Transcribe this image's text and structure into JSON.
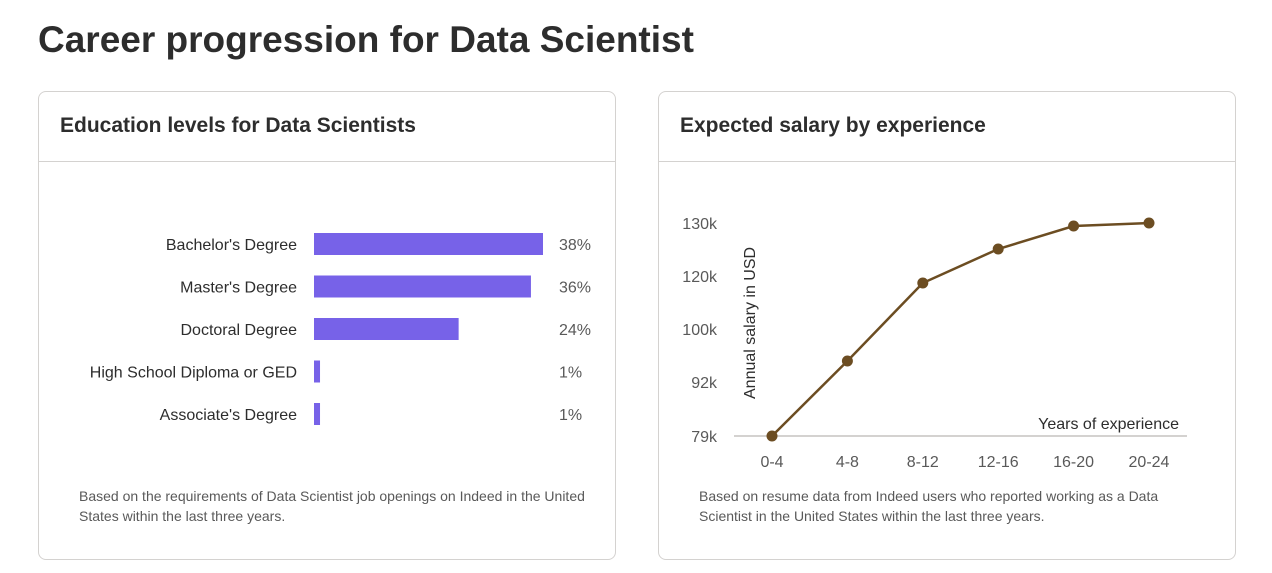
{
  "page": {
    "title": "Career progression for Data Scientist"
  },
  "education": {
    "title": "Education levels for Data Scientists",
    "footnote": "Based on the requirements of Data Scientist job openings on Indeed in the United States within the last three years.",
    "chart_data": {
      "type": "bar",
      "orientation": "horizontal",
      "categories": [
        "Bachelor's Degree",
        "Master's Degree",
        "Doctoral Degree",
        "High School Diploma or GED",
        "Associate's Degree"
      ],
      "values": [
        38,
        36,
        24,
        1,
        1
      ],
      "value_labels": [
        "38%",
        "36%",
        "24%",
        "1%",
        "1%"
      ],
      "bar_color": "#7762e8"
    }
  },
  "salary": {
    "title": "Expected salary by experience",
    "footnote": "Based on resume data from Indeed users who reported working as a Data Scientist in the United States within the last three years.",
    "chart_data": {
      "type": "line",
      "categories": [
        "0-4",
        "4-8",
        "8-12",
        "12-16",
        "16-20",
        "20-24"
      ],
      "y_tick_labels": [
        "79k",
        "92k",
        "100k",
        "120k",
        "130k"
      ],
      "values": [
        79,
        95,
        118,
        125,
        130,
        131
      ],
      "ylim": [
        79,
        131
      ],
      "xlabel": "Years of experience",
      "ylabel": "Annual salary in USD",
      "line_color": "#6c4d22"
    }
  }
}
